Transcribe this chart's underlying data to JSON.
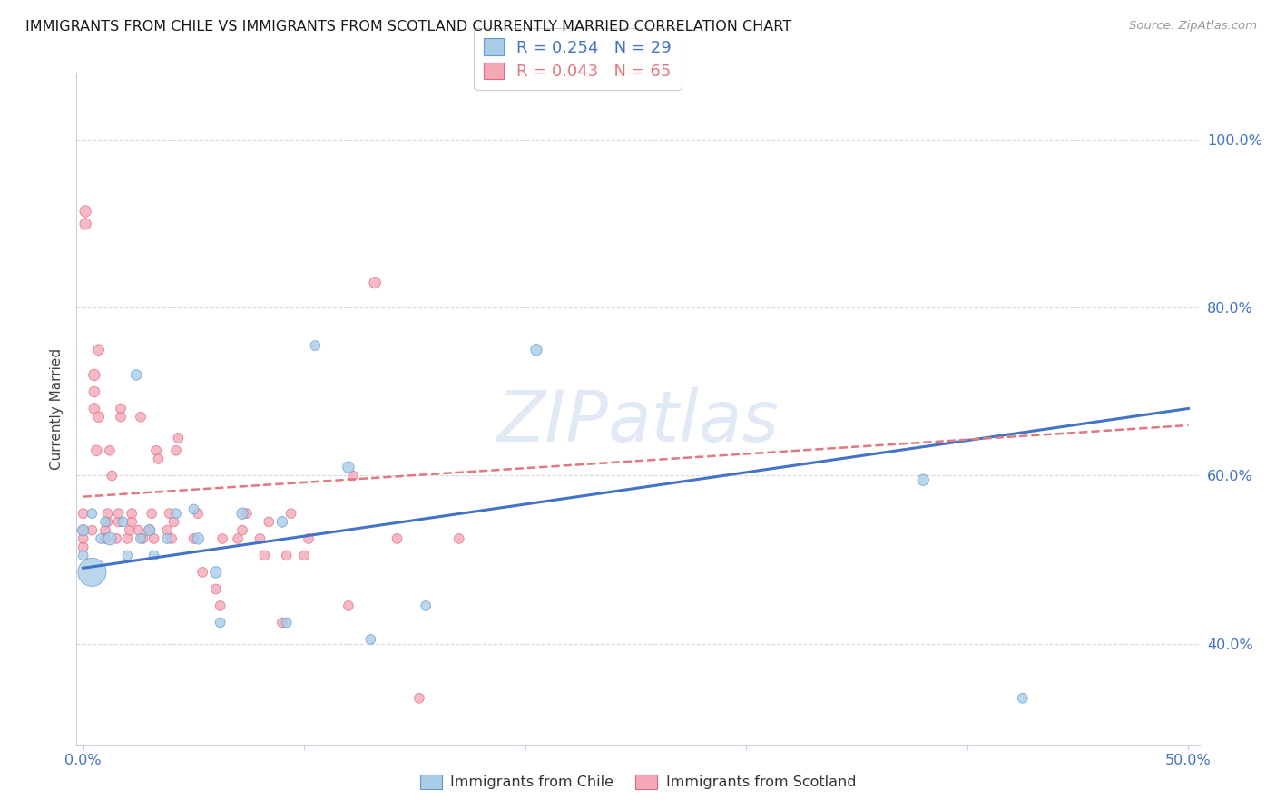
{
  "title": "IMMIGRANTS FROM CHILE VS IMMIGRANTS FROM SCOTLAND CURRENTLY MARRIED CORRELATION CHART",
  "source": "Source: ZipAtlas.com",
  "ylabel": "Currently Married",
  "y_ticks": [
    0.4,
    0.6,
    0.8,
    1.0
  ],
  "y_tick_labels": [
    "40.0%",
    "60.0%",
    "80.0%",
    "100.0%"
  ],
  "xlim": [
    -0.003,
    0.505
  ],
  "ylim": [
    0.28,
    1.08
  ],
  "chile_color": "#a8cce8",
  "chile_edge_color": "#6699cc",
  "scotland_color": "#f4a8b8",
  "scotland_edge_color": "#e06880",
  "chile_line_color": "#4472c4",
  "scotland_line_color": "#e07880",
  "watermark": "ZIPatlas",
  "chile_scatter_x": [
    0.0,
    0.0,
    0.004,
    0.004,
    0.008,
    0.01,
    0.012,
    0.018,
    0.02,
    0.024,
    0.026,
    0.03,
    0.032,
    0.038,
    0.042,
    0.05,
    0.052,
    0.06,
    0.062,
    0.072,
    0.09,
    0.092,
    0.105,
    0.12,
    0.13,
    0.155,
    0.205,
    0.38,
    0.425
  ],
  "chile_scatter_y": [
    0.535,
    0.505,
    0.555,
    0.485,
    0.525,
    0.545,
    0.525,
    0.545,
    0.505,
    0.72,
    0.525,
    0.535,
    0.505,
    0.525,
    0.555,
    0.56,
    0.525,
    0.485,
    0.425,
    0.555,
    0.545,
    0.425,
    0.755,
    0.61,
    0.405,
    0.445,
    0.75,
    0.595,
    0.335
  ],
  "chile_scatter_size": [
    80,
    60,
    60,
    500,
    60,
    60,
    100,
    60,
    60,
    70,
    60,
    80,
    60,
    60,
    60,
    60,
    80,
    80,
    60,
    80,
    70,
    60,
    60,
    80,
    60,
    60,
    80,
    80,
    60
  ],
  "scotland_scatter_x": [
    0.0,
    0.0,
    0.0,
    0.0,
    0.001,
    0.001,
    0.004,
    0.005,
    0.005,
    0.005,
    0.006,
    0.007,
    0.007,
    0.01,
    0.01,
    0.011,
    0.011,
    0.012,
    0.013,
    0.015,
    0.016,
    0.016,
    0.017,
    0.017,
    0.02,
    0.021,
    0.022,
    0.022,
    0.025,
    0.026,
    0.027,
    0.03,
    0.031,
    0.032,
    0.033,
    0.034,
    0.038,
    0.039,
    0.04,
    0.041,
    0.042,
    0.043,
    0.05,
    0.052,
    0.054,
    0.06,
    0.062,
    0.063,
    0.07,
    0.072,
    0.074,
    0.08,
    0.082,
    0.084,
    0.09,
    0.092,
    0.094,
    0.1,
    0.102,
    0.12,
    0.122,
    0.132,
    0.142,
    0.152,
    0.17
  ],
  "scotland_scatter_y": [
    0.535,
    0.515,
    0.525,
    0.555,
    0.915,
    0.9,
    0.535,
    0.68,
    0.7,
    0.72,
    0.63,
    0.67,
    0.75,
    0.535,
    0.525,
    0.545,
    0.555,
    0.63,
    0.6,
    0.525,
    0.545,
    0.555,
    0.67,
    0.68,
    0.525,
    0.535,
    0.545,
    0.555,
    0.535,
    0.67,
    0.525,
    0.535,
    0.555,
    0.525,
    0.63,
    0.62,
    0.535,
    0.555,
    0.525,
    0.545,
    0.63,
    0.645,
    0.525,
    0.555,
    0.485,
    0.465,
    0.445,
    0.525,
    0.525,
    0.535,
    0.555,
    0.525,
    0.505,
    0.545,
    0.425,
    0.505,
    0.555,
    0.505,
    0.525,
    0.445,
    0.6,
    0.83,
    0.525,
    0.335,
    0.525
  ],
  "scotland_scatter_size": [
    60,
    60,
    60,
    60,
    80,
    80,
    60,
    70,
    70,
    80,
    70,
    70,
    70,
    60,
    60,
    60,
    60,
    60,
    60,
    60,
    60,
    60,
    60,
    60,
    60,
    60,
    60,
    60,
    60,
    60,
    60,
    60,
    60,
    60,
    60,
    60,
    60,
    60,
    60,
    60,
    60,
    60,
    60,
    60,
    60,
    60,
    60,
    60,
    60,
    60,
    60,
    60,
    60,
    60,
    60,
    60,
    60,
    60,
    60,
    60,
    60,
    80,
    60,
    60,
    60
  ],
  "chile_trend_x": [
    0.0,
    0.5
  ],
  "chile_trend_y": [
    0.49,
    0.68
  ],
  "scotland_trend_x": [
    0.0,
    0.5
  ],
  "scotland_trend_y": [
    0.575,
    0.66
  ],
  "grid_color": "#d8d8e0",
  "tick_color": "#4472c4",
  "spine_color": "#ccccdd",
  "background_color": "#ffffff",
  "legend_r_chile": "R = 0.254",
  "legend_n_chile": "N = 29",
  "legend_r_scotland": "R = 0.043",
  "legend_n_scotland": "N = 65",
  "bottom_legend_chile": "Immigrants from Chile",
  "bottom_legend_scotland": "Immigrants from Scotland"
}
